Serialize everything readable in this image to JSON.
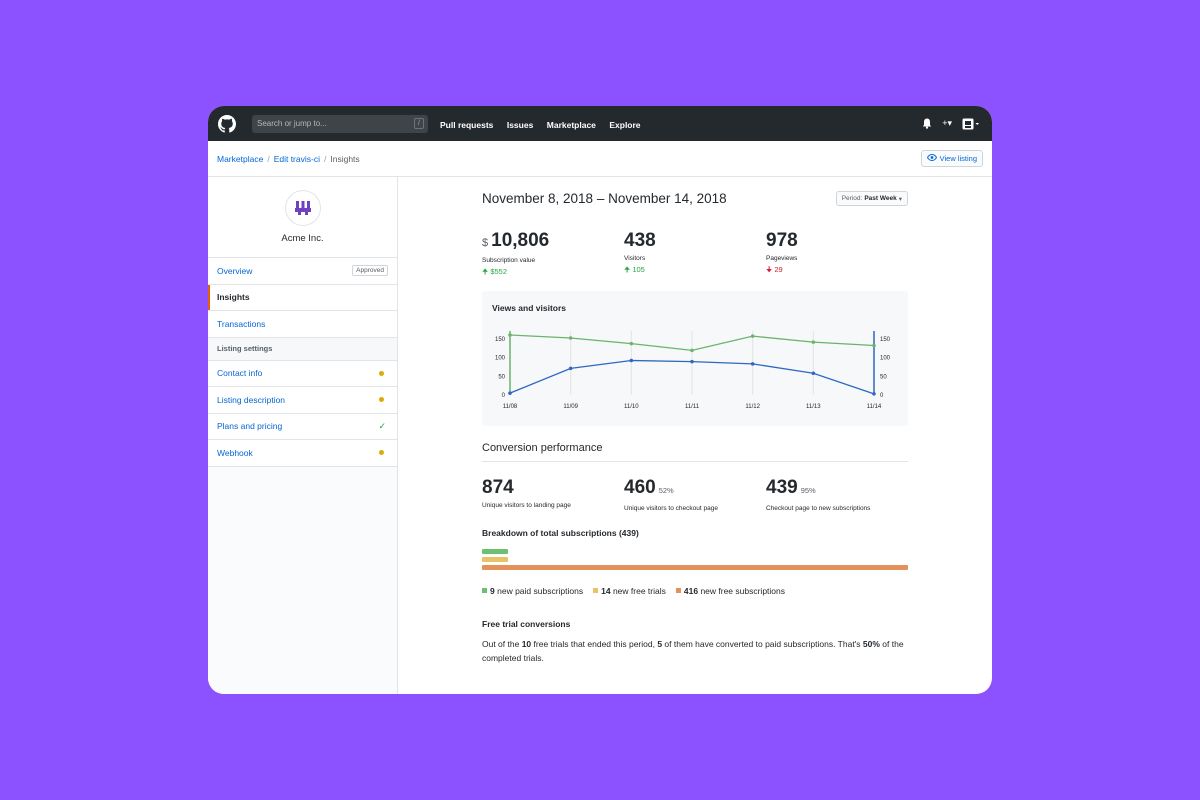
{
  "header": {
    "search_placeholder": "Search or jump to...",
    "search_shortcut": "/",
    "nav": [
      "Pull requests",
      "Issues",
      "Marketplace",
      "Explore"
    ],
    "plus": "+▾"
  },
  "breadcrumb": {
    "items": [
      "Marketplace",
      "Edit travis-ci"
    ],
    "current": "Insights",
    "view_listing": "View listing"
  },
  "sidebar": {
    "org_name": "Acme Inc.",
    "overview": {
      "label": "Overview",
      "badge": "Approved"
    },
    "insights": "Insights",
    "transactions": "Transactions",
    "section": "Listing settings",
    "settings": [
      {
        "label": "Contact info",
        "status": "pending"
      },
      {
        "label": "Listing description",
        "status": "pending"
      },
      {
        "label": "Plans and pricing",
        "status": "done"
      },
      {
        "label": "Webhook",
        "status": "pending"
      }
    ]
  },
  "main": {
    "date_range": "November 8, 2018 – November 14, 2018",
    "period_label": "Period:",
    "period_value": "Past Week",
    "stats": [
      {
        "currency": "$",
        "value": "10,806",
        "label": "Subscription value",
        "delta": "$552",
        "dir": "up"
      },
      {
        "currency": "",
        "value": "438",
        "label": "Visitors",
        "delta": "105",
        "dir": "up"
      },
      {
        "currency": "",
        "value": "978",
        "label": "Pageviews",
        "delta": "29",
        "dir": "down"
      }
    ],
    "chart_title": "Views and visitors",
    "conversion_title": "Conversion performance",
    "conversion": [
      {
        "value": "874",
        "pct": "",
        "label": "Unique visitors to landing page"
      },
      {
        "value": "460",
        "pct": "52%",
        "label": "Unique visitors to checkout page"
      },
      {
        "value": "439",
        "pct": "95%",
        "label": "Checkout page to new subscriptions"
      }
    ],
    "breakdown_title": "Breakdown of total subscriptions (439)",
    "breakdown": [
      {
        "count": "9",
        "label": "new paid subscriptions",
        "value": 9,
        "color": "#6cc070"
      },
      {
        "count": "14",
        "label": "new free trials",
        "value": 14,
        "color": "#e8c264"
      },
      {
        "count": "416",
        "label": "new free subscriptions",
        "value": 416,
        "color": "#e5925a"
      }
    ],
    "free_trial_title": "Free trial conversions",
    "free_trial_parts": [
      "Out of the ",
      "10",
      " free trials that ended this period, ",
      "5",
      " of them have converted to paid subscriptions. That's ",
      "50%",
      " of the completed trials."
    ]
  },
  "chart_data": {
    "type": "line",
    "title": "Views and visitors",
    "x": [
      "11/08",
      "11/09",
      "11/10",
      "11/11",
      "11/12",
      "11/13",
      "11/14"
    ],
    "y_ticks_left": [
      0,
      50,
      100,
      150
    ],
    "y_ticks_right": [
      0,
      50,
      100,
      150
    ],
    "ylim": [
      0,
      160
    ],
    "grid": "vertical",
    "series": [
      {
        "values": [
          160,
          152,
          137,
          119,
          157,
          141,
          132
        ],
        "color": "#6cb36c"
      },
      {
        "values": [
          5,
          71,
          92,
          89,
          83,
          58,
          3
        ],
        "color": "#2f67c2"
      }
    ]
  }
}
